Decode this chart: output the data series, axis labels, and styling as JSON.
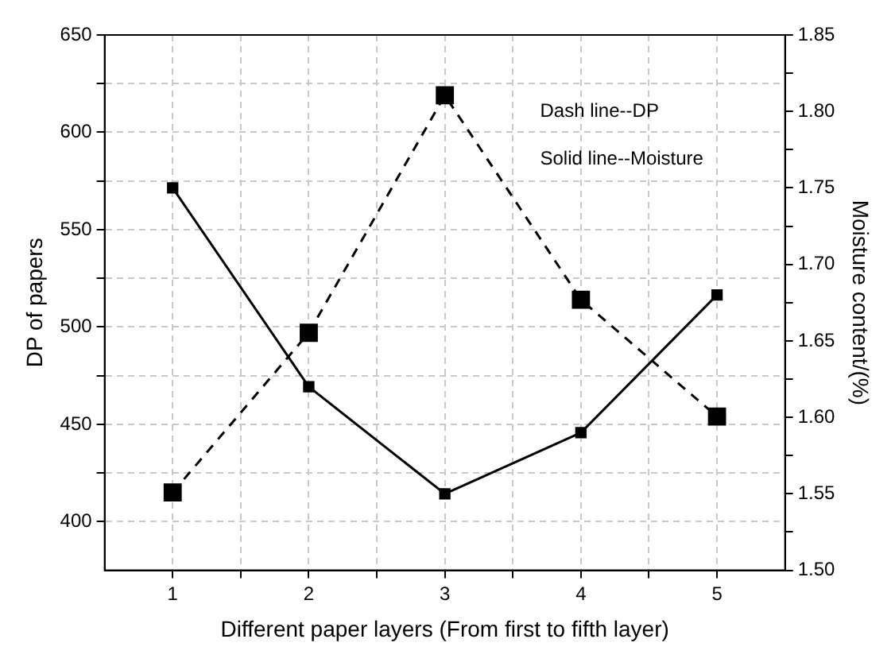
{
  "chart_data": {
    "type": "line",
    "xlabel": "Different paper layers (From first to fifth layer)",
    "ylabel": "DP of papers",
    "y2label": "Moisture content/(%)",
    "x": [
      1,
      2,
      3,
      4,
      5
    ],
    "series": [
      {
        "color": "#000000",
        "values": [
          415,
          497,
          619,
          514,
          454
        ],
        "line_style": "dashed",
        "marker": "square"
      },
      {
        "color": "#000000",
        "values": [
          1.75,
          1.62,
          1.55,
          1.59,
          1.68
        ],
        "axis": "y2",
        "line_style": "solid",
        "marker": "square"
      }
    ],
    "xlim": [
      0.5,
      5.5
    ],
    "xticks": [
      1,
      {
        "value": 1.5,
        "label": null
      },
      2,
      {
        "value": 2.5,
        "label": null
      },
      3,
      {
        "value": 3.5,
        "label": null
      },
      4,
      {
        "value": 4.5,
        "label": null
      },
      5
    ],
    "ylim": [
      375,
      650
    ],
    "yticks": [
      400,
      {
        "value": 425,
        "label": null
      },
      450,
      {
        "value": 475,
        "label": null
      },
      500,
      {
        "value": 525,
        "label": null
      },
      550,
      {
        "value": 575,
        "label": null
      },
      600,
      {
        "value": 625,
        "label": null
      },
      650
    ],
    "y2lim": [
      1.5,
      1.85
    ],
    "y2ticks": [
      {
        "value": 1.5,
        "label": "1.50"
      },
      {
        "value": 1.525,
        "label": null
      },
      {
        "value": 1.55,
        "label": "1.55"
      },
      {
        "value": 1.575,
        "label": null
      },
      {
        "value": 1.6,
        "label": "1.60"
      },
      {
        "value": 1.625,
        "label": null
      },
      {
        "value": 1.65,
        "label": "1.65"
      },
      {
        "value": 1.675,
        "label": null
      },
      {
        "value": 1.7,
        "label": "1.70"
      },
      {
        "value": 1.725,
        "label": null
      },
      {
        "value": 1.75,
        "label": "1.75"
      },
      {
        "value": 1.775,
        "label": null
      },
      {
        "value": 1.8,
        "label": "1.80"
      },
      {
        "value": 1.825,
        "label": null
      },
      {
        "value": 1.85,
        "label": "1.85"
      }
    ],
    "grid": true,
    "legend": false,
    "annotations": [
      "Dash line--DP",
      "Solid line--Moisture"
    ]
  }
}
